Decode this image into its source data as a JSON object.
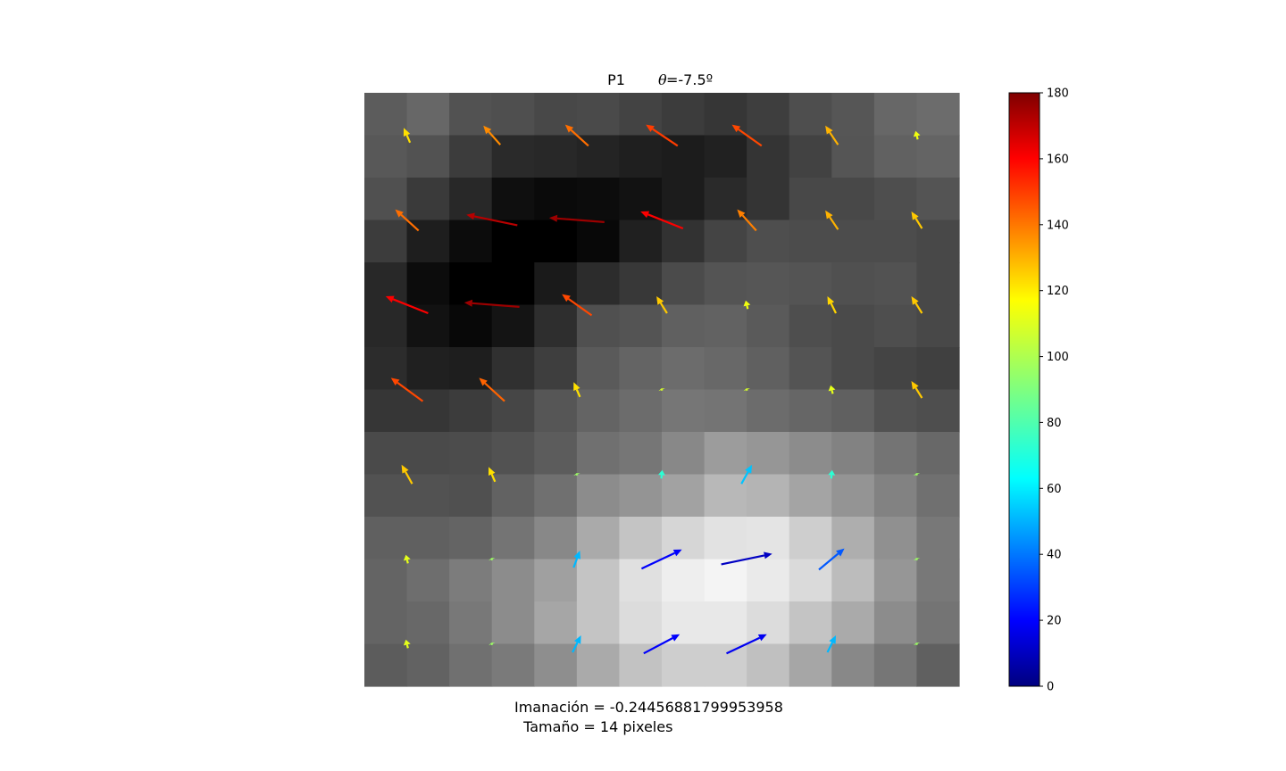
{
  "chart_data": {
    "type": "heatmap",
    "title_label": "P1",
    "title_theta_symbol": "θ",
    "title_theta_value": "=-7.5º",
    "grid": false,
    "heatmap": {
      "colormap": "gray",
      "rows": 14,
      "cols": 14,
      "values": [
        [
          92,
          103,
          82,
          79,
          72,
          74,
          67,
          60,
          54,
          62,
          78,
          86,
          103,
          108
        ],
        [
          88,
          82,
          60,
          42,
          40,
          36,
          31,
          28,
          33,
          52,
          66,
          85,
          97,
          100
        ],
        [
          80,
          58,
          40,
          15,
          10,
          12,
          18,
          28,
          42,
          52,
          72,
          72,
          78,
          84
        ],
        [
          60,
          30,
          12,
          0,
          0,
          8,
          32,
          50,
          68,
          78,
          76,
          76,
          76,
          72
        ],
        [
          40,
          12,
          0,
          0,
          26,
          44,
          56,
          75,
          84,
          86,
          84,
          80,
          82,
          72
        ],
        [
          40,
          18,
          8,
          20,
          46,
          80,
          84,
          96,
          98,
          90,
          78,
          74,
          78,
          72
        ],
        [
          44,
          32,
          30,
          48,
          62,
          90,
          100,
          108,
          104,
          96,
          84,
          74,
          68,
          64
        ],
        [
          54,
          54,
          60,
          70,
          86,
          100,
          108,
          118,
          116,
          108,
          102,
          96,
          82,
          78
        ],
        [
          74,
          74,
          76,
          82,
          92,
          112,
          118,
          136,
          156,
          150,
          140,
          130,
          116,
          104
        ],
        [
          82,
          82,
          80,
          98,
          112,
          140,
          148,
          162,
          184,
          180,
          164,
          148,
          130,
          112
        ],
        [
          96,
          96,
          100,
          116,
          136,
          170,
          196,
          214,
          226,
          228,
          206,
          174,
          144,
          120
        ],
        [
          100,
          110,
          124,
          140,
          160,
          196,
          224,
          238,
          244,
          234,
          218,
          188,
          150,
          120
        ],
        [
          100,
          104,
          120,
          140,
          166,
          196,
          220,
          232,
          232,
          220,
          196,
          170,
          140,
          116
        ],
        [
          92,
          98,
          112,
          122,
          142,
          170,
          194,
          206,
          206,
          192,
          166,
          136,
          118,
          96
        ]
      ]
    },
    "quiver": {
      "color_scale": "jet",
      "note": "arrow positions are grid coordinates (col,row of pixel centers); angle in degrees shown by colorbar",
      "arrows": [
        {
          "x": 1,
          "y": 1,
          "dx": -0.15,
          "dy": -0.35,
          "angle": 118
        },
        {
          "x": 3,
          "y": 1,
          "dx": -0.4,
          "dy": -0.45,
          "angle": 133
        },
        {
          "x": 5,
          "y": 1,
          "dx": -0.55,
          "dy": -0.5,
          "angle": 138
        },
        {
          "x": 7,
          "y": 1,
          "dx": -0.75,
          "dy": -0.5,
          "angle": 147
        },
        {
          "x": 9,
          "y": 1,
          "dx": -0.7,
          "dy": -0.5,
          "angle": 145
        },
        {
          "x": 11,
          "y": 1,
          "dx": -0.3,
          "dy": -0.45,
          "angle": 126
        },
        {
          "x": 13,
          "y": 1,
          "dx": -0.05,
          "dy": -0.2,
          "angle": 110
        },
        {
          "x": 1,
          "y": 3,
          "dx": -0.55,
          "dy": -0.5,
          "angle": 138
        },
        {
          "x": 3,
          "y": 3,
          "dx": -1.2,
          "dy": -0.25,
          "angle": 170
        },
        {
          "x": 5,
          "y": 3,
          "dx": -1.3,
          "dy": -0.1,
          "angle": 175
        },
        {
          "x": 7,
          "y": 3,
          "dx": -1.0,
          "dy": -0.4,
          "angle": 158
        },
        {
          "x": 9,
          "y": 3,
          "dx": -0.45,
          "dy": -0.5,
          "angle": 135
        },
        {
          "x": 11,
          "y": 3,
          "dx": -0.3,
          "dy": -0.45,
          "angle": 126
        },
        {
          "x": 13,
          "y": 3,
          "dx": -0.25,
          "dy": -0.4,
          "angle": 122
        },
        {
          "x": 1,
          "y": 5,
          "dx": -1.0,
          "dy": -0.4,
          "angle": 158
        },
        {
          "x": 3,
          "y": 5,
          "dx": -1.3,
          "dy": -0.1,
          "angle": 175
        },
        {
          "x": 5,
          "y": 5,
          "dx": -0.7,
          "dy": -0.5,
          "angle": 145
        },
        {
          "x": 7,
          "y": 5,
          "dx": -0.25,
          "dy": -0.4,
          "angle": 122
        },
        {
          "x": 9,
          "y": 5,
          "dx": -0.05,
          "dy": -0.2,
          "angle": 110
        },
        {
          "x": 11,
          "y": 5,
          "dx": -0.2,
          "dy": -0.4,
          "angle": 120
        },
        {
          "x": 13,
          "y": 5,
          "dx": -0.25,
          "dy": -0.4,
          "angle": 122
        },
        {
          "x": 1,
          "y": 7,
          "dx": -0.75,
          "dy": -0.55,
          "angle": 145
        },
        {
          "x": 3,
          "y": 7,
          "dx": -0.6,
          "dy": -0.55,
          "angle": 140
        },
        {
          "x": 5,
          "y": 7,
          "dx": -0.15,
          "dy": -0.35,
          "angle": 118
        },
        {
          "x": 7,
          "y": 7,
          "dx": -0.02,
          "dy": -0.05,
          "angle": 105
        },
        {
          "x": 9,
          "y": 7,
          "dx": -0.02,
          "dy": -0.05,
          "angle": 105
        },
        {
          "x": 11,
          "y": 7,
          "dx": -0.05,
          "dy": -0.2,
          "angle": 108
        },
        {
          "x": 13,
          "y": 7,
          "dx": -0.25,
          "dy": -0.4,
          "angle": 122
        },
        {
          "x": 1,
          "y": 9,
          "dx": -0.25,
          "dy": -0.45,
          "angle": 122
        },
        {
          "x": 3,
          "y": 9,
          "dx": -0.15,
          "dy": -0.35,
          "angle": 118
        },
        {
          "x": 5,
          "y": 9,
          "dx": -0.02,
          "dy": -0.05,
          "angle": 95
        },
        {
          "x": 7,
          "y": 9,
          "dx": 0.02,
          "dy": -0.2,
          "angle": 75
        },
        {
          "x": 9,
          "y": 9,
          "dx": 0.25,
          "dy": -0.45,
          "angle": 57
        },
        {
          "x": 11,
          "y": 9,
          "dx": 0.02,
          "dy": -0.2,
          "angle": 75
        },
        {
          "x": 13,
          "y": 9,
          "dx": -0.02,
          "dy": -0.05,
          "angle": 95
        },
        {
          "x": 1,
          "y": 11,
          "dx": -0.05,
          "dy": -0.2,
          "angle": 108
        },
        {
          "x": 3,
          "y": 11,
          "dx": -0.02,
          "dy": -0.05,
          "angle": 95
        },
        {
          "x": 5,
          "y": 11,
          "dx": 0.15,
          "dy": -0.4,
          "angle": 55
        },
        {
          "x": 7,
          "y": 11,
          "dx": 0.95,
          "dy": -0.45,
          "angle": 22
        },
        {
          "x": 9,
          "y": 11,
          "dx": 1.2,
          "dy": -0.25,
          "angle": 12
        },
        {
          "x": 11,
          "y": 11,
          "dx": 0.6,
          "dy": -0.5,
          "angle": 38
        },
        {
          "x": 13,
          "y": 11,
          "dx": -0.02,
          "dy": -0.05,
          "angle": 95
        },
        {
          "x": 1,
          "y": 13,
          "dx": -0.05,
          "dy": -0.2,
          "angle": 108
        },
        {
          "x": 3,
          "y": 13,
          "dx": -0.02,
          "dy": -0.05,
          "angle": 95
        },
        {
          "x": 5,
          "y": 13,
          "dx": 0.2,
          "dy": -0.4,
          "angle": 55
        },
        {
          "x": 7,
          "y": 13,
          "dx": 0.85,
          "dy": -0.45,
          "angle": 22
        },
        {
          "x": 9,
          "y": 13,
          "dx": 0.95,
          "dy": -0.45,
          "angle": 20
        },
        {
          "x": 11,
          "y": 13,
          "dx": 0.2,
          "dy": -0.4,
          "angle": 55
        },
        {
          "x": 13,
          "y": 13,
          "dx": -0.02,
          "dy": -0.05,
          "angle": 95
        }
      ]
    },
    "colorbar": {
      "range": [
        0,
        180
      ],
      "ticks": [
        0,
        20,
        40,
        60,
        80,
        100,
        120,
        140,
        160,
        180
      ],
      "tick_labels": [
        "0",
        "20",
        "40",
        "60",
        "80",
        "100",
        "120",
        "140",
        "160",
        "180"
      ]
    }
  },
  "captions": {
    "line1": "Imanación = -0.24456881799953958",
    "line2": " Tamaño = 14 pixeles"
  }
}
